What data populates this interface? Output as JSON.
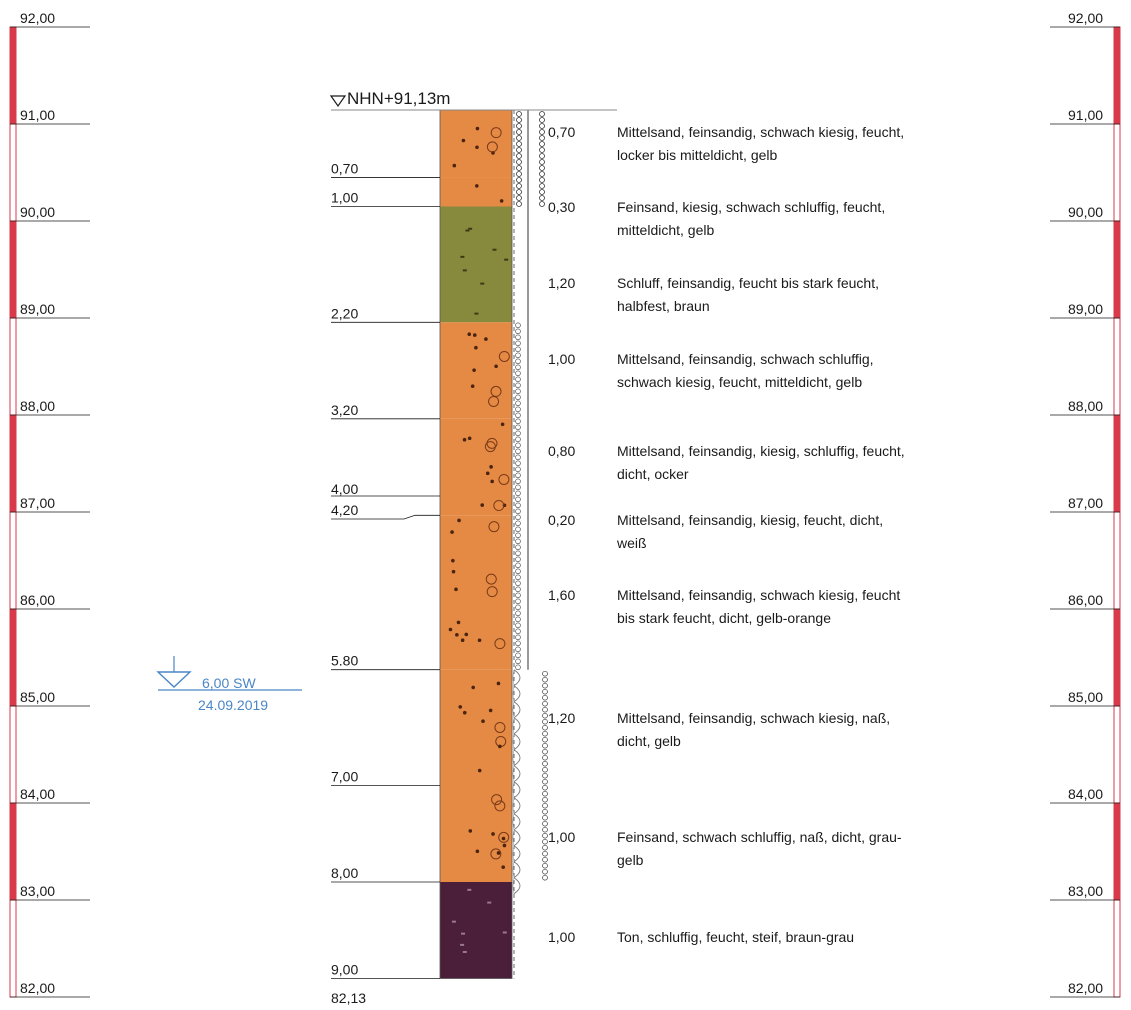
{
  "reference_level": "NHN+91,13m",
  "bottom_elevation": "82,13",
  "colors": {
    "scale_red": "#d83a4a",
    "sand_orange": "#e58a44",
    "silt_olive": "#878a3c",
    "clay_purple": "#4b1f3a",
    "groundwater_blue": "#4a86c5"
  },
  "elevation_scale": {
    "top": 92,
    "bottom": 82,
    "labels": [
      "92,00",
      "91,00",
      "90,00",
      "89,00",
      "88,00",
      "87,00",
      "86,00",
      "85,00",
      "84,00",
      "83,00",
      "82,00"
    ]
  },
  "groundwater": {
    "depth_value": 6.0,
    "depth_label": "6,00 SW",
    "date": "24.09.2019"
  },
  "layers": [
    {
      "top": 0.0,
      "bottom": 0.7,
      "depth_label": "0,70",
      "thickness_label": "0,70",
      "soil": "sand",
      "desc": [
        "Mittelsand, feinsandig, schwach kiesig, feucht,",
        "locker bis mitteldicht, gelb"
      ]
    },
    {
      "top": 0.7,
      "bottom": 1.0,
      "depth_label": "1,00",
      "thickness_label": "0,30",
      "soil": "sand",
      "desc": [
        "Feinsand, kiesig, schwach schluffig, feucht,",
        "mitteldicht, gelb"
      ]
    },
    {
      "top": 1.0,
      "bottom": 2.2,
      "depth_label": "2,20",
      "thickness_label": "1,20",
      "soil": "silt",
      "desc": [
        "Schluff, feinsandig, feucht bis stark feucht,",
        "halbfest, braun"
      ]
    },
    {
      "top": 2.2,
      "bottom": 3.2,
      "depth_label": "3,20",
      "thickness_label": "1,00",
      "soil": "sand",
      "desc": [
        "Mittelsand, feinsandig, schwach schluffig,",
        "schwach kiesig, feucht, mitteldicht, gelb"
      ]
    },
    {
      "top": 3.2,
      "bottom": 4.0,
      "depth_label": "4,00",
      "thickness_label": "0,80",
      "soil": "sand",
      "desc": [
        "Mittelsand, feinsandig, kiesig, schluffig, feucht,",
        "dicht, ocker"
      ]
    },
    {
      "top": 4.0,
      "bottom": 4.2,
      "depth_label": "4,20",
      "thickness_label": "0,20",
      "soil": "sand",
      "desc": [
        "Mittelsand, feinsandig, kiesig, feucht, dicht,",
        "weiß"
      ]
    },
    {
      "top": 4.2,
      "bottom": 5.8,
      "depth_label": "5.80",
      "thickness_label": "1,60",
      "soil": "sand",
      "desc": [
        "Mittelsand, feinsandig, schwach kiesig, feucht",
        "bis stark feucht, dicht, gelb-orange"
      ]
    },
    {
      "top": 5.8,
      "bottom": 7.0,
      "depth_label": "7,00",
      "thickness_label": "1,20",
      "soil": "sand",
      "desc": [
        "Mittelsand, feinsandig, schwach kiesig, naß,",
        "dicht, gelb"
      ]
    },
    {
      "top": 7.0,
      "bottom": 8.0,
      "depth_label": "8,00",
      "thickness_label": "1,00",
      "soil": "sand",
      "desc": [
        "Feinsand, schwach schluffig, naß, dicht, grau-",
        "gelb"
      ]
    },
    {
      "top": 8.0,
      "bottom": 9.0,
      "depth_label": "9,00",
      "thickness_label": "1,00",
      "soil": "clay",
      "desc": [
        "Ton, schluffig, feucht, steif, braun-grau"
      ]
    }
  ]
}
